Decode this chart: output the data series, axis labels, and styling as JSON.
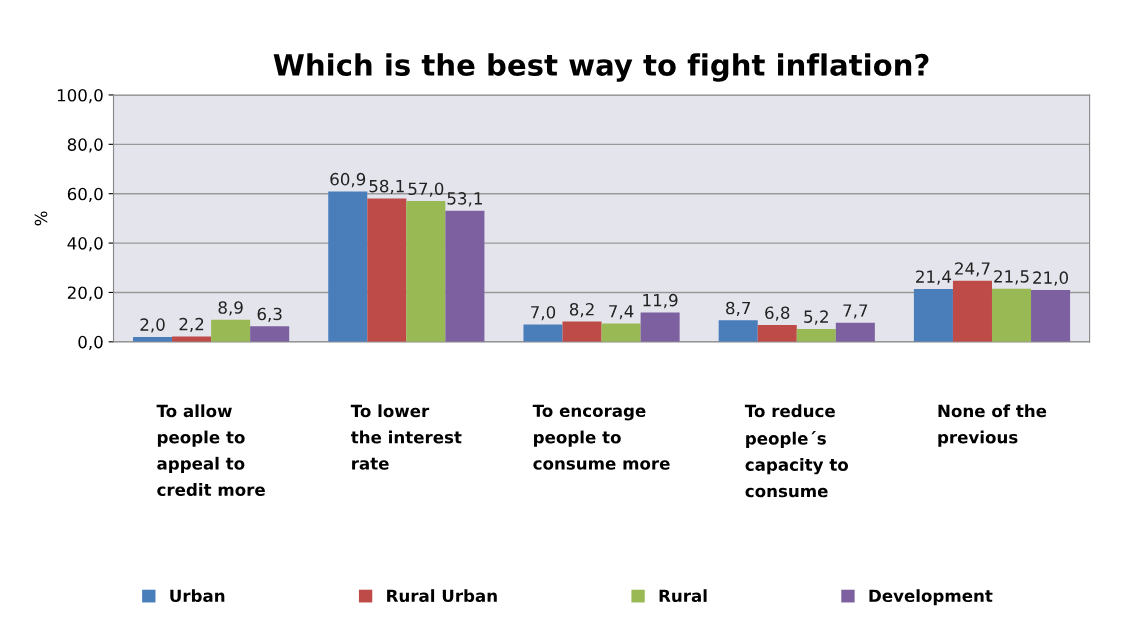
{
  "chart_data": {
    "type": "bar",
    "title": "Which is the best way to fight inflation?",
    "ylabel": "%",
    "categories": [
      "To allow\npeople to\nappeal to\ncredit more",
      "To lower\nthe interest\nrate",
      "To encorage\npeople to\nconsume more",
      "To reduce\npeople´s\ncapacity to\nconsume",
      "None of the\nprevious"
    ],
    "series": [
      {
        "name": "Urban",
        "color": "#4a7ebb",
        "values": [
          2.0,
          60.9,
          7.0,
          8.7,
          21.4
        ],
        "value_labels": [
          "2,0",
          "60,9",
          "7,0",
          "8,7",
          "21,4"
        ]
      },
      {
        "name": "Rural Urban",
        "color": "#be4b48",
        "values": [
          2.2,
          58.1,
          8.2,
          6.8,
          24.7
        ],
        "value_labels": [
          "2,2",
          "58,1",
          "8,2",
          "6,8",
          "24,7"
        ]
      },
      {
        "name": "Rural",
        "color": "#98b954",
        "values": [
          8.9,
          57.0,
          7.4,
          5.2,
          21.5
        ],
        "value_labels": [
          "8,9",
          "57,0",
          "7,4",
          "5,2",
          "21,5"
        ]
      },
      {
        "name": "Development",
        "color": "#7d60a0",
        "values": [
          6.3,
          53.1,
          11.9,
          7.7,
          21.0
        ],
        "value_labels": [
          "6,3",
          "53,1",
          "11,9",
          "7,7",
          "21,0"
        ]
      }
    ],
    "ylim": [
      0,
      100
    ],
    "yticks": [
      {
        "value": 0,
        "label": "0,0"
      },
      {
        "value": 20,
        "label": "20,0"
      },
      {
        "value": 40,
        "label": "40,0"
      },
      {
        "value": 60,
        "label": "60,0"
      },
      {
        "value": 80,
        "label": "80,0"
      },
      {
        "value": 100,
        "label": "100,0"
      }
    ],
    "grid": "y",
    "legend": "bottom"
  }
}
